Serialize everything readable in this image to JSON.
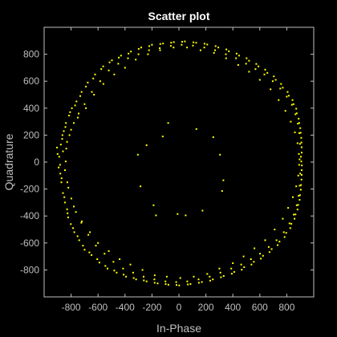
{
  "chart_data": {
    "type": "scatter",
    "title": "Scatter plot",
    "xlabel": "In-Phase",
    "ylabel": "Quadrature",
    "xlim": [
      -1000,
      1000
    ],
    "ylim": [
      -1000,
      1000
    ],
    "xticks": [
      -800,
      -600,
      -400,
      -200,
      0,
      200,
      400,
      600,
      800
    ],
    "yticks": [
      -800,
      -600,
      -400,
      -200,
      0,
      200,
      400,
      600,
      800
    ],
    "xtick_labels": [
      "-800",
      "-600",
      "-400",
      "-200",
      "0",
      "200",
      "400",
      "600",
      "800"
    ],
    "ytick_labels": [
      "-800",
      "-600",
      "-400",
      "-200",
      "0",
      "200",
      "400",
      "600",
      "800"
    ],
    "grid": false,
    "background": "#000000",
    "axis_color": "#bfbfbf",
    "marker_color": "#ffff00",
    "series": [
      {
        "points": [
          [
            -905,
            108
          ],
          [
            -888,
            40
          ],
          [
            -882,
            -20
          ],
          [
            -880,
            -85
          ],
          [
            -872,
            -150
          ],
          [
            -866,
            172
          ],
          [
            -860,
            -230
          ],
          [
            -854,
            230
          ],
          [
            -846,
            -300
          ],
          [
            -838,
            290
          ],
          [
            -830,
            -350
          ],
          [
            -822,
            -410
          ],
          [
            -815,
            345
          ],
          [
            -802,
            -460
          ],
          [
            -794,
            400
          ],
          [
            -776,
            -520
          ],
          [
            -760,
            450
          ],
          [
            -740,
            -580
          ],
          [
            -722,
            520
          ],
          [
            -700,
            -650
          ],
          [
            -676,
            590
          ],
          [
            -648,
            -690
          ],
          [
            -622,
            650
          ],
          [
            -590,
            -745
          ],
          [
            -562,
            710
          ],
          [
            -530,
            -790
          ],
          [
            -497,
            755
          ],
          [
            -462,
            -820
          ],
          [
            -430,
            790
          ],
          [
            -392,
            -850
          ],
          [
            -356,
            820
          ],
          [
            -318,
            -870
          ],
          [
            -280,
            850
          ],
          [
            -240,
            -885
          ],
          [
            -200,
            870
          ],
          [
            -158,
            -900
          ],
          [
            -118,
            880
          ],
          [
            -78,
            -910
          ],
          [
            -38,
            890
          ],
          [
            2,
            -915
          ],
          [
            44,
            895
          ],
          [
            86,
            -905
          ],
          [
            128,
            885
          ],
          [
            170,
            -890
          ],
          [
            210,
            872
          ],
          [
            252,
            -870
          ],
          [
            292,
            850
          ],
          [
            332,
            -845
          ],
          [
            370,
            822
          ],
          [
            410,
            -815
          ],
          [
            446,
            790
          ],
          [
            484,
            -780
          ],
          [
            520,
            752
          ],
          [
            556,
            -740
          ],
          [
            590,
            710
          ],
          [
            624,
            -695
          ],
          [
            656,
            662
          ],
          [
            688,
            -645
          ],
          [
            718,
            610
          ],
          [
            746,
            -590
          ],
          [
            770,
            552
          ],
          [
            796,
            -525
          ],
          [
            815,
            492
          ],
          [
            834,
            -458
          ],
          [
            850,
            430
          ],
          [
            864,
            -388
          ],
          [
            874,
            362
          ],
          [
            884,
            -318
          ],
          [
            892,
            290
          ],
          [
            898,
            -245
          ],
          [
            903,
            218
          ],
          [
            906,
            -170
          ],
          [
            909,
            145
          ],
          [
            910,
            -95
          ],
          [
            911,
            70
          ],
          [
            912,
            -25
          ],
          [
            908,
            5
          ],
          [
            905,
            40
          ],
          [
            -900,
            60
          ],
          [
            -892,
            -40
          ],
          [
            -876,
            130
          ],
          [
            -870,
            -120
          ],
          [
            -864,
            200
          ],
          [
            -850,
            -260
          ],
          [
            -842,
            260
          ],
          [
            -826,
            -380
          ],
          [
            -808,
            370
          ],
          [
            -786,
            -490
          ],
          [
            -770,
            420
          ],
          [
            -752,
            -550
          ],
          [
            -732,
            490
          ],
          [
            -712,
            -620
          ],
          [
            -690,
            560
          ],
          [
            -664,
            -670
          ],
          [
            -636,
            620
          ],
          [
            -606,
            -720
          ],
          [
            -576,
            690
          ],
          [
            -546,
            -770
          ],
          [
            -514,
            740
          ],
          [
            -480,
            -805
          ],
          [
            -446,
            775
          ],
          [
            -410,
            -835
          ],
          [
            -374,
            805
          ],
          [
            -336,
            -860
          ],
          [
            -298,
            840
          ],
          [
            -260,
            -878
          ],
          [
            -220,
            860
          ],
          [
            -180,
            -895
          ],
          [
            -138,
            876
          ],
          [
            -98,
            -905
          ],
          [
            -58,
            886
          ],
          [
            -18,
            -912
          ],
          [
            24,
            892
          ],
          [
            66,
            -908
          ],
          [
            108,
            888
          ],
          [
            148,
            -895
          ],
          [
            190,
            878
          ],
          [
            232,
            -880
          ],
          [
            272,
            860
          ],
          [
            312,
            -855
          ],
          [
            352,
            836
          ],
          [
            392,
            -828
          ],
          [
            428,
            805
          ],
          [
            466,
            -798
          ],
          [
            502,
            770
          ],
          [
            538,
            -760
          ],
          [
            574,
            728
          ],
          [
            608,
            -716
          ],
          [
            640,
            686
          ],
          [
            672,
            -668
          ],
          [
            704,
            636
          ],
          [
            732,
            -616
          ],
          [
            758,
            580
          ],
          [
            784,
            -556
          ],
          [
            806,
            520
          ],
          [
            826,
            -490
          ],
          [
            842,
            460
          ],
          [
            858,
            -420
          ],
          [
            870,
            396
          ],
          [
            880,
            -352
          ],
          [
            888,
            322
          ],
          [
            895,
            -280
          ],
          [
            900,
            252
          ],
          [
            904,
            -205
          ],
          [
            907,
            180
          ],
          [
            909,
            -130
          ],
          [
            910,
            110
          ],
          [
            911,
            -60
          ],
          [
            -860,
            80
          ],
          [
            -845,
            -60
          ],
          [
            -830,
            150
          ],
          [
            -820,
            -190
          ],
          [
            -800,
            240
          ],
          [
            -780,
            -330
          ],
          [
            -750,
            330
          ],
          [
            -720,
            -440
          ],
          [
            -690,
            400
          ],
          [
            -660,
            -520
          ],
          [
            -630,
            500
          ],
          [
            -600,
            -600
          ],
          [
            -560,
            580
          ],
          [
            -520,
            -660
          ],
          [
            -480,
            650
          ],
          [
            -440,
            -720
          ],
          [
            -400,
            700
          ],
          [
            -360,
            -760
          ],
          [
            -320,
            760
          ],
          [
            -270,
            -800
          ],
          [
            -230,
            800
          ],
          [
            -180,
            -840
          ],
          [
            -140,
            830
          ],
          [
            -90,
            -850
          ],
          [
            -40,
            850
          ],
          [
            10,
            -860
          ],
          [
            60,
            850
          ],
          [
            110,
            -850
          ],
          [
            160,
            830
          ],
          [
            210,
            -830
          ],
          [
            260,
            810
          ],
          [
            300,
            -790
          ],
          [
            350,
            770
          ],
          [
            400,
            -750
          ],
          [
            440,
            720
          ],
          [
            480,
            -700
          ],
          [
            520,
            670
          ],
          [
            560,
            -640
          ],
          [
            600,
            610
          ],
          [
            640,
            -580
          ],
          [
            680,
            540
          ],
          [
            710,
            -500
          ],
          [
            740,
            460
          ],
          [
            770,
            -420
          ],
          [
            790,
            380
          ],
          [
            810,
            -340
          ],
          [
            830,
            300
          ],
          [
            845,
            -260
          ],
          [
            860,
            220
          ],
          [
            870,
            -180
          ],
          [
            880,
            140
          ],
          [
            885,
            -100
          ],
          [
            890,
            60
          ],
          [
            892,
            -20
          ],
          [
            895,
            20
          ],
          [
            -840,
            5
          ],
          [
            -836,
            100
          ],
          [
            -828,
            -150
          ],
          [
            -812,
            200
          ],
          [
            -798,
            -270
          ],
          [
            -780,
            290
          ],
          [
            -764,
            -370
          ],
          [
            -744,
            360
          ],
          [
            -724,
            -450
          ],
          [
            -700,
            430
          ],
          [
            -672,
            -540
          ],
          [
            -646,
            520
          ],
          [
            -616,
            -620
          ],
          [
            -584,
            600
          ],
          [
            -552,
            -680
          ],
          [
            -520,
            680
          ],
          [
            -486,
            -740
          ],
          [
            -450,
            730
          ],
          [
            -414,
            -790
          ],
          [
            -378,
            770
          ],
          [
            -340,
            -820
          ],
          [
            -300,
            800
          ],
          [
            -262,
            -850
          ],
          [
            -222,
            830
          ],
          [
            -182,
            -870
          ],
          [
            -142,
            845
          ],
          [
            -100,
            -885
          ],
          [
            -60,
            862
          ],
          [
            -20,
            -890
          ],
          [
            20,
            870
          ],
          [
            62,
            -885
          ],
          [
            104,
            864
          ],
          [
            146,
            -870
          ],
          [
            188,
            850
          ],
          [
            228,
            -850
          ],
          [
            268,
            830
          ],
          [
            308,
            -820
          ],
          [
            348,
            800
          ],
          [
            388,
            -790
          ],
          [
            424,
            770
          ],
          [
            462,
            -760
          ],
          [
            498,
            730
          ],
          [
            534,
            -720
          ],
          [
            568,
            690
          ],
          [
            602,
            -680
          ],
          [
            634,
            650
          ],
          [
            666,
            -630
          ],
          [
            696,
            600
          ],
          [
            724,
            -580
          ],
          [
            752,
            545
          ],
          [
            778,
            -520
          ],
          [
            800,
            485
          ],
          [
            820,
            -455
          ],
          [
            838,
            425
          ],
          [
            852,
            -390
          ],
          [
            864,
            355
          ],
          [
            874,
            -320
          ],
          [
            882,
            285
          ],
          [
            888,
            -250
          ],
          [
            892,
            215
          ],
          [
            896,
            -175
          ],
          [
            898,
            135
          ],
          [
            900,
            -85
          ],
          [
            -305,
            55
          ],
          [
            -285,
            -180
          ],
          [
            -240,
            125
          ],
          [
            -188,
            -320
          ],
          [
            -170,
            -395
          ],
          [
            -120,
            190
          ],
          [
            -80,
            290
          ],
          [
            -10,
            -385
          ],
          [
            50,
            -395
          ],
          [
            130,
            245
          ],
          [
            175,
            -360
          ],
          [
            255,
            185
          ],
          [
            305,
            55
          ],
          [
            330,
            -135
          ],
          [
            320,
            -215
          ]
        ]
      }
    ]
  }
}
